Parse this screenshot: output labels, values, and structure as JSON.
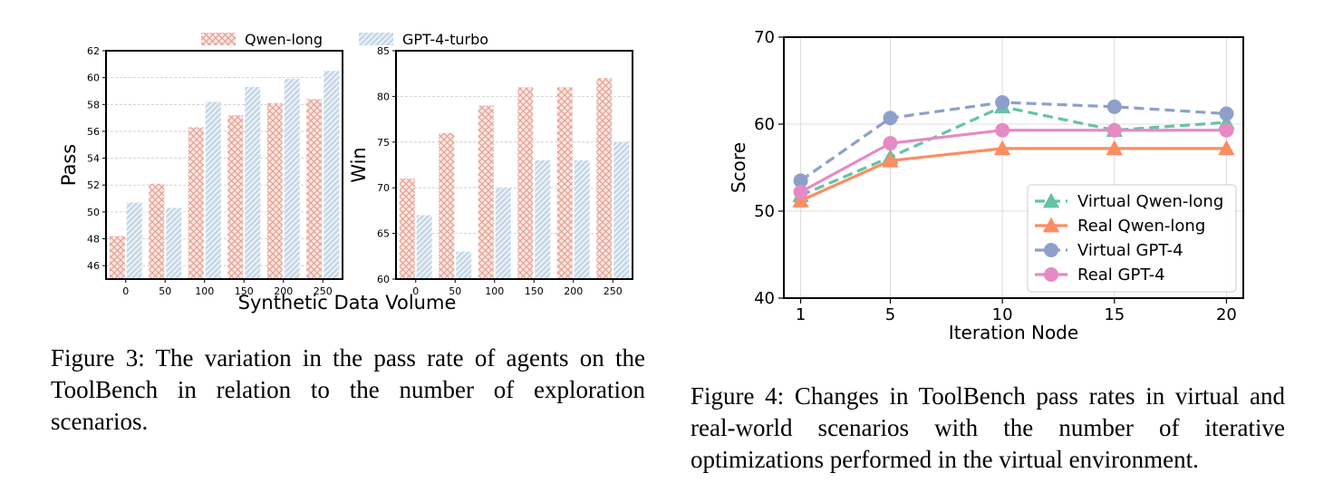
{
  "chart_data": [
    {
      "type": "bar",
      "legend": [
        "Qwen-long",
        "GPT-4-turbo"
      ],
      "legend_position": "top",
      "xlabel": "Synthetic Data Volume",
      "panels": [
        {
          "ylabel": "Pass",
          "ylim": [
            45,
            62
          ],
          "yticks": [
            46,
            48,
            50,
            52,
            54,
            56,
            58,
            60,
            62
          ],
          "categories": [
            "0",
            "50",
            "100",
            "150",
            "200",
            "250"
          ],
          "series": [
            {
              "name": "Qwen-long",
              "values": [
                48.2,
                52.1,
                56.3,
                57.2,
                58.1,
                58.4
              ]
            },
            {
              "name": "GPT-4-turbo",
              "values": [
                50.7,
                50.3,
                58.2,
                59.3,
                59.9,
                60.5
              ]
            }
          ]
        },
        {
          "ylabel": "Win",
          "ylim": [
            60,
            85
          ],
          "yticks": [
            60,
            65,
            70,
            75,
            80,
            85
          ],
          "categories": [
            "0",
            "50",
            "100",
            "150",
            "200",
            "250"
          ],
          "series": [
            {
              "name": "Qwen-long",
              "values": [
                71,
                76,
                79,
                81,
                81,
                82
              ]
            },
            {
              "name": "GPT-4-turbo",
              "values": [
                67,
                63,
                70,
                73,
                73,
                75
              ]
            }
          ]
        }
      ],
      "colors": {
        "Qwen-long": "#e8a79a",
        "GPT-4-turbo": "#a9c4da"
      }
    },
    {
      "type": "line",
      "xlabel": "Iteration Node",
      "ylabel": "Score",
      "x": [
        1,
        5,
        10,
        15,
        20
      ],
      "ylim": [
        40,
        70
      ],
      "yticks": [
        40,
        50,
        60,
        70
      ],
      "grid": true,
      "legend_position": "bottom-right",
      "series": [
        {
          "name": "Virtual Qwen-long",
          "values": [
            51.8,
            56.2,
            62.0,
            59.3,
            60.2
          ],
          "color": "#66c2a5",
          "marker": "triangle",
          "dashed": true
        },
        {
          "name": "Real Qwen-long",
          "values": [
            51.2,
            55.8,
            57.2,
            57.2,
            57.2
          ],
          "color": "#fc8d62",
          "marker": "triangle",
          "dashed": false
        },
        {
          "name": "Virtual GPT-4",
          "values": [
            53.5,
            60.7,
            62.5,
            62.0,
            61.2
          ],
          "color": "#8da0cb",
          "marker": "circle",
          "dashed": true
        },
        {
          "name": "Real GPT-4",
          "values": [
            52.2,
            57.8,
            59.3,
            59.3,
            59.3
          ],
          "color": "#e78ac3",
          "marker": "circle",
          "dashed": false
        }
      ]
    }
  ],
  "captions": {
    "figure3": "Figure 3: The variation in the pass rate of agents on the ToolBench in relation to the number of exploration scenarios.",
    "figure4": "Figure 4: Changes in ToolBench pass rates in virtual and real-world scenarios with the number of iterative optimizations performed in the virtual environment."
  }
}
